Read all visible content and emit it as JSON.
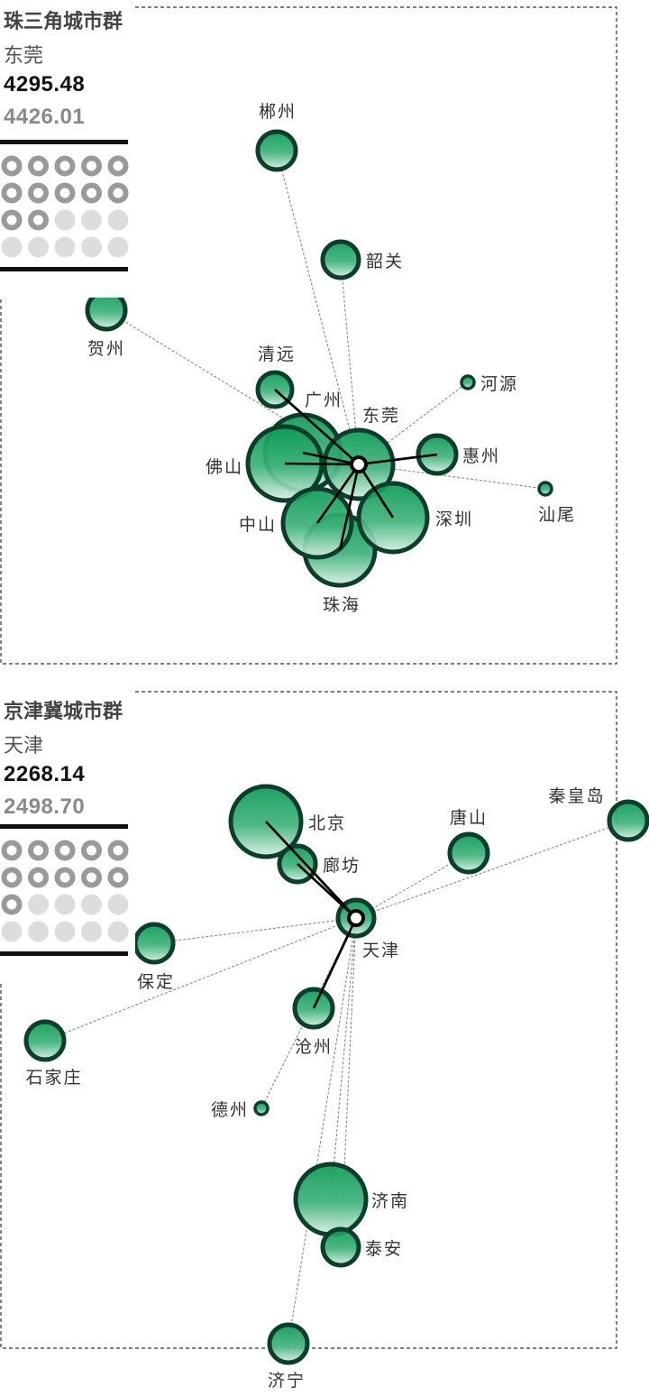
{
  "colors": {
    "bubble_fill_top": "#0a9a55",
    "bubble_fill_bottom": "#d6efe2",
    "bubble_stroke": "#0d3d2b",
    "strong_link": "#000000",
    "weak_link": "#888888",
    "dot_ring": "#9a9a9a",
    "dot_empty": "#dddddd",
    "frame": "#333333"
  },
  "panels": [
    {
      "title": "珠三角城市群",
      "selected_city": "东莞",
      "value_primary": "4295.48",
      "value_secondary": "4426.01",
      "dots": {
        "total": 20,
        "filled": 12
      },
      "center": "东莞",
      "cities": [
        {
          "name": "郴州",
          "link": "weak"
        },
        {
          "name": "韶关",
          "link": "weak"
        },
        {
          "name": "贺州",
          "link": "weak"
        },
        {
          "name": "清远",
          "link": "strong"
        },
        {
          "name": "河源",
          "link": "weak"
        },
        {
          "name": "广州",
          "link": "strong"
        },
        {
          "name": "东莞",
          "link": "center"
        },
        {
          "name": "惠州",
          "link": "strong"
        },
        {
          "name": "佛山",
          "link": "strong"
        },
        {
          "name": "汕尾",
          "link": "weak"
        },
        {
          "name": "深圳",
          "link": "strong"
        },
        {
          "name": "中山",
          "link": "strong"
        },
        {
          "name": "珠海",
          "link": "strong"
        }
      ]
    },
    {
      "title": "京津冀城市群",
      "selected_city": "天津",
      "value_primary": "2268.14",
      "value_secondary": "2498.70",
      "dots": {
        "total": 20,
        "filled": 11
      },
      "center": "天津",
      "cities": [
        {
          "name": "北京",
          "link": "strong"
        },
        {
          "name": "唐山",
          "link": "weak"
        },
        {
          "name": "秦皇岛",
          "link": "weak"
        },
        {
          "name": "廊坊",
          "link": "strong"
        },
        {
          "name": "天津",
          "link": "center"
        },
        {
          "name": "保定",
          "link": "weak"
        },
        {
          "name": "沧州",
          "link": "strong"
        },
        {
          "name": "石家庄",
          "link": "weak"
        },
        {
          "name": "德州",
          "link": "weak"
        },
        {
          "name": "济南",
          "link": "weak"
        },
        {
          "name": "泰安",
          "link": "weak"
        },
        {
          "name": "济宁",
          "link": "weak"
        }
      ]
    }
  ]
}
